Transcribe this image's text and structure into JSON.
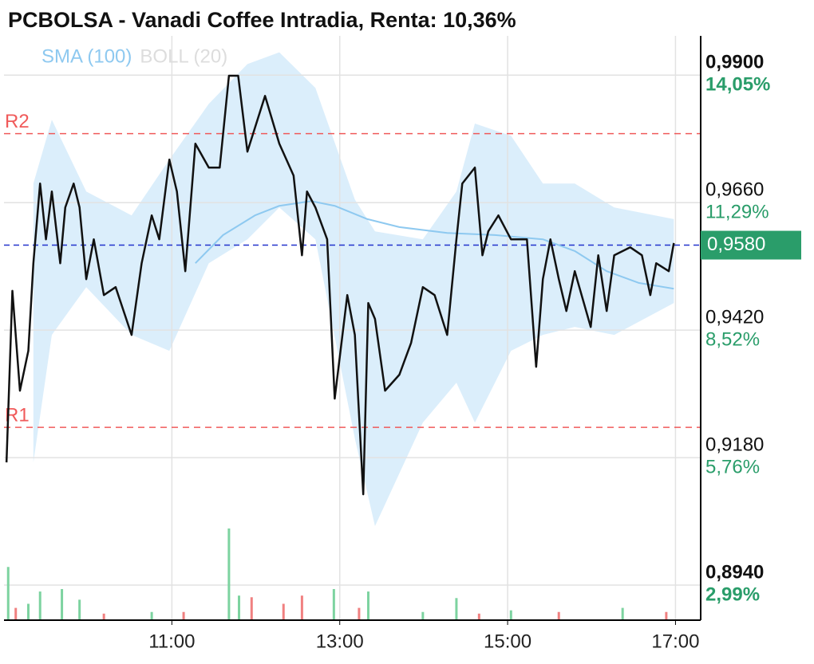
{
  "chart_data": {
    "type": "line",
    "title": "PCBOLSA - Vanadi Coffee Intradia, Renta: 10,36%",
    "xlim": [
      9,
      17.3
    ],
    "xticks": [
      {
        "value": 11,
        "label": "11:00"
      },
      {
        "value": 13,
        "label": "13:00"
      },
      {
        "value": 15,
        "label": "15:00"
      },
      {
        "value": 17,
        "label": "17:00"
      }
    ],
    "ylim": [
      0.8874,
      0.9974
    ],
    "yticks": [
      {
        "value": 0.99,
        "label": "0,9900"
      },
      {
        "value": 0.966,
        "label": "0,9660"
      },
      {
        "value": 0.942,
        "label": "0,9420"
      },
      {
        "value": 0.918,
        "label": "0,9180"
      },
      {
        "value": 0.894,
        "label": "0,8940"
      }
    ],
    "y_pct_ticks": [
      {
        "value": 0.99,
        "label": "14,05%"
      },
      {
        "value": 0.966,
        "label": "11,29%"
      },
      {
        "value": 0.942,
        "label": "8,52%"
      },
      {
        "value": 0.918,
        "label": "5,76%"
      },
      {
        "value": 0.894,
        "label": "2,99%"
      }
    ],
    "grid": true,
    "price": {
      "color": "#111111",
      "x": [
        9.03,
        9.1,
        9.19,
        9.29,
        9.35,
        9.43,
        9.5,
        9.57,
        9.67,
        9.73,
        9.83,
        9.9,
        9.98,
        10.07,
        10.19,
        10.33,
        10.52,
        10.64,
        10.76,
        10.85,
        10.97,
        11.06,
        11.16,
        11.28,
        11.44,
        11.57,
        11.68,
        11.79,
        11.9,
        11.99,
        12.11,
        12.28,
        12.45,
        12.55,
        12.61,
        12.71,
        12.85,
        12.94,
        13.09,
        13.18,
        13.28,
        13.34,
        13.42,
        13.54,
        13.71,
        13.85,
        13.99,
        14.13,
        14.28,
        14.39,
        14.46,
        14.61,
        14.7,
        14.77,
        14.89,
        15.04,
        15.23,
        15.34,
        15.42,
        15.51,
        15.61,
        15.7,
        15.8,
        15.99,
        16.08,
        16.18,
        16.27,
        16.46,
        16.6,
        16.7,
        16.77,
        16.92,
        16.98
      ],
      "values": [
        0.9171,
        0.9494,
        0.9306,
        0.9381,
        0.9546,
        0.9696,
        0.9591,
        0.9681,
        0.9546,
        0.9651,
        0.9696,
        0.9651,
        0.9516,
        0.9591,
        0.9486,
        0.9501,
        0.9411,
        0.9546,
        0.9636,
        0.9591,
        0.9741,
        0.9681,
        0.9531,
        0.9771,
        0.9726,
        0.9726,
        0.9899,
        0.9899,
        0.9756,
        0.9801,
        0.9861,
        0.9771,
        0.9711,
        0.9561,
        0.9681,
        0.9651,
        0.9591,
        0.9291,
        0.9486,
        0.9411,
        0.9111,
        0.9471,
        0.9441,
        0.9306,
        0.9336,
        0.9396,
        0.9501,
        0.9486,
        0.9411,
        0.9591,
        0.9696,
        0.9726,
        0.9561,
        0.9606,
        0.9636,
        0.9591,
        0.9591,
        0.9351,
        0.9516,
        0.9591,
        0.9516,
        0.9456,
        0.9531,
        0.9426,
        0.9561,
        0.9456,
        0.9561,
        0.9576,
        0.9561,
        0.9486,
        0.9546,
        0.9531,
        0.9584
      ]
    },
    "sma": {
      "name": "SMA (100)",
      "color": "#8ec9f0",
      "x": [
        11.28,
        11.61,
        11.99,
        12.28,
        12.66,
        12.94,
        13.33,
        13.71,
        14.28,
        14.85,
        15.42,
        15.8,
        16.18,
        16.56,
        16.98
      ],
      "values": [
        0.9546,
        0.9599,
        0.9636,
        0.9654,
        0.9663,
        0.9654,
        0.9629,
        0.9614,
        0.9603,
        0.9599,
        0.9591,
        0.9569,
        0.9531,
        0.9509,
        0.9498
      ]
    },
    "boll": {
      "name": "BOLL (20)",
      "color": "#dddddd",
      "band_color": "#dbeefb",
      "x": [
        9.35,
        9.57,
        9.98,
        10.52,
        10.97,
        11.44,
        11.9,
        12.28,
        12.71,
        13.18,
        13.42,
        13.99,
        14.39,
        14.61,
        15.04,
        15.42,
        15.8,
        16.27,
        16.98
      ],
      "upper": [
        0.9696,
        0.9816,
        0.9681,
        0.9636,
        0.9741,
        0.9846,
        0.9921,
        0.9943,
        0.9876,
        0.9666,
        0.9606,
        0.9591,
        0.9681,
        0.9809,
        0.9786,
        0.9696,
        0.9696,
        0.9651,
        0.9629
      ],
      "lower": [
        0.9171,
        0.9411,
        0.9501,
        0.9411,
        0.9381,
        0.9546,
        0.9591,
        0.9651,
        0.9591,
        0.9216,
        0.9051,
        0.9246,
        0.9321,
        0.9246,
        0.9381,
        0.9411,
        0.9426,
        0.9411,
        0.9471
      ]
    },
    "levels": [
      {
        "label": "R2",
        "value": 0.979,
        "color": "#f05a5a"
      },
      {
        "label": "R1",
        "value": 0.9237,
        "color": "#f05a5a"
      }
    ],
    "last": {
      "value": 0.958,
      "label": "0,9580",
      "color": "#2a9d6a",
      "line_color": "#2233cc"
    },
    "volume": {
      "x": [
        9.05,
        9.14,
        9.29,
        9.43,
        9.69,
        9.9,
        10.19,
        10.76,
        11.14,
        11.68,
        11.8,
        11.95,
        12.33,
        12.55,
        12.93,
        13.23,
        13.34,
        13.99,
        14.39,
        14.66,
        15.04,
        15.61,
        16.37,
        16.89
      ],
      "values": [
        65,
        15,
        20,
        35,
        38,
        25,
        8,
        10,
        10,
        112,
        30,
        28,
        20,
        30,
        38,
        15,
        35,
        10,
        27,
        8,
        12,
        10,
        15,
        10
      ],
      "colors": [
        "#7dd3a0",
        "#f08080",
        "#7dd3a0",
        "#7dd3a0",
        "#7dd3a0",
        "#7dd3a0",
        "#f08080",
        "#7dd3a0",
        "#f08080",
        "#7dd3a0",
        "#7dd3a0",
        "#f08080",
        "#f08080",
        "#f08080",
        "#7dd3a0",
        "#f08080",
        "#7dd3a0",
        "#7dd3a0",
        "#7dd3a0",
        "#f08080",
        "#7dd3a0",
        "#f08080",
        "#7dd3a0",
        "#f08080"
      ]
    }
  }
}
